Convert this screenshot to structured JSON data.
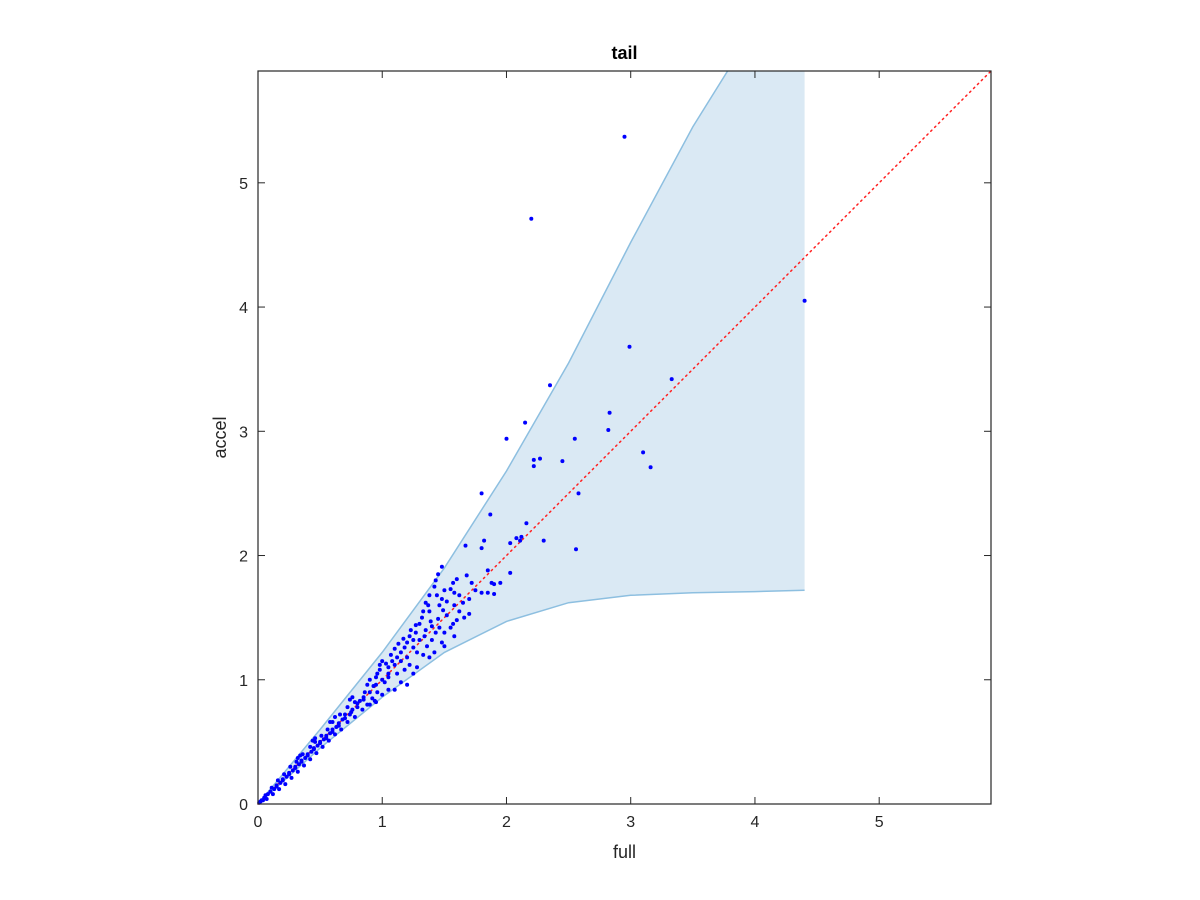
{
  "chart_data": {
    "type": "scatter",
    "title": "tail",
    "xlabel": "full",
    "ylabel": "accel",
    "xlim": [
      0,
      5.9
    ],
    "ylim": [
      0,
      5.9
    ],
    "xticks": [
      "0",
      "1",
      "2",
      "3",
      "4",
      "5"
    ],
    "yticks": [
      "0",
      "1",
      "2",
      "3",
      "4",
      "5"
    ],
    "grid": false,
    "legend": "none",
    "colors": {
      "points": "#0000ff",
      "band_fill": "#dae9f4",
      "band_edge": "#8dbfe0",
      "reference_line": "#ff2020",
      "axes": "#262626"
    },
    "band": {
      "upper": [
        [
          0,
          0
        ],
        [
          0.5,
          0.6
        ],
        [
          1.0,
          1.22
        ],
        [
          1.5,
          1.9
        ],
        [
          2.0,
          2.68
        ],
        [
          2.5,
          3.55
        ],
        [
          3.0,
          4.52
        ],
        [
          3.5,
          5.45
        ],
        [
          3.78,
          5.9
        ],
        [
          4.4,
          5.9
        ]
      ],
      "lower": [
        [
          0,
          0
        ],
        [
          0.5,
          0.45
        ],
        [
          1.0,
          0.86
        ],
        [
          1.5,
          1.22
        ],
        [
          2.0,
          1.47
        ],
        [
          2.5,
          1.62
        ],
        [
          3.0,
          1.68
        ],
        [
          3.5,
          1.7
        ],
        [
          4.0,
          1.71
        ],
        [
          4.4,
          1.72
        ]
      ]
    },
    "reference_line": {
      "style": "dotted",
      "from": [
        0,
        0
      ],
      "to": [
        5.9,
        5.9
      ]
    },
    "series": [
      {
        "points": [
          [
            2.95,
            5.37
          ],
          [
            2.2,
            4.71
          ],
          [
            4.4,
            4.05
          ],
          [
            2.99,
            3.68
          ],
          [
            3.33,
            3.42
          ],
          [
            2.35,
            3.37
          ],
          [
            2.83,
            3.15
          ],
          [
            2.82,
            3.01
          ],
          [
            2.15,
            3.07
          ],
          [
            2.0,
            2.94
          ],
          [
            2.55,
            2.94
          ],
          [
            3.1,
            2.83
          ],
          [
            3.16,
            2.71
          ],
          [
            2.22,
            2.77
          ],
          [
            2.27,
            2.78
          ],
          [
            2.45,
            2.76
          ],
          [
            2.22,
            2.72
          ],
          [
            2.58,
            2.5
          ],
          [
            1.8,
            2.5
          ],
          [
            1.87,
            2.33
          ],
          [
            2.16,
            2.26
          ],
          [
            2.3,
            2.12
          ],
          [
            2.56,
            2.05
          ],
          [
            2.08,
            2.14
          ],
          [
            2.12,
            2.15
          ],
          [
            2.03,
            2.1
          ],
          [
            2.11,
            2.12
          ],
          [
            2.03,
            1.86
          ],
          [
            1.67,
            2.08
          ],
          [
            1.82,
            2.12
          ],
          [
            1.48,
            1.91
          ],
          [
            1.8,
            2.06
          ],
          [
            1.85,
            1.88
          ],
          [
            1.9,
            1.77
          ],
          [
            1.95,
            1.78
          ],
          [
            1.88,
            1.78
          ],
          [
            1.8,
            1.7
          ],
          [
            1.85,
            1.7
          ],
          [
            1.9,
            1.69
          ],
          [
            1.68,
            1.84
          ],
          [
            1.72,
            1.78
          ],
          [
            1.6,
            1.81
          ],
          [
            1.45,
            1.85
          ],
          [
            1.43,
            1.8
          ],
          [
            1.55,
            1.73
          ],
          [
            1.58,
            1.7
          ],
          [
            1.52,
            1.63
          ],
          [
            1.46,
            1.6
          ],
          [
            1.65,
            1.62
          ],
          [
            1.62,
            1.55
          ],
          [
            1.48,
            1.65
          ],
          [
            1.42,
            1.75
          ],
          [
            1.38,
            1.68
          ],
          [
            1.35,
            1.62
          ],
          [
            1.38,
            1.55
          ],
          [
            1.45,
            1.49
          ],
          [
            1.5,
            1.38
          ],
          [
            1.55,
            1.42
          ],
          [
            1.58,
            1.35
          ],
          [
            1.32,
            1.5
          ],
          [
            1.3,
            1.45
          ],
          [
            1.27,
            1.38
          ],
          [
            1.25,
            1.32
          ],
          [
            1.22,
            1.35
          ],
          [
            1.2,
            1.3
          ],
          [
            1.28,
            1.22
          ],
          [
            1.33,
            1.2
          ],
          [
            1.36,
            1.27
          ],
          [
            1.4,
            1.32
          ],
          [
            1.43,
            1.38
          ],
          [
            1.46,
            1.42
          ],
          [
            1.18,
            1.26
          ],
          [
            1.15,
            1.22
          ],
          [
            1.12,
            1.18
          ],
          [
            1.1,
            1.25
          ],
          [
            1.08,
            1.15
          ],
          [
            1.05,
            1.1
          ],
          [
            1.12,
            1.05
          ],
          [
            1.18,
            1.08
          ],
          [
            1.22,
            1.12
          ],
          [
            1.25,
            1.05
          ],
          [
            1.28,
            1.1
          ],
          [
            1.15,
            0.98
          ],
          [
            1.2,
            0.96
          ],
          [
            1.1,
            0.92
          ],
          [
            1.05,
            1.02
          ],
          [
            1.02,
            0.98
          ],
          [
            0.98,
            1.08
          ],
          [
            0.95,
            1.02
          ],
          [
            0.93,
            0.95
          ],
          [
            0.96,
            0.9
          ],
          [
            1.0,
            0.88
          ],
          [
            1.05,
            0.92
          ],
          [
            0.9,
            1.0
          ],
          [
            0.88,
            0.96
          ],
          [
            0.86,
            0.9
          ],
          [
            0.92,
            0.85
          ],
          [
            0.95,
            0.82
          ],
          [
            0.85,
            0.86
          ],
          [
            0.82,
            0.83
          ],
          [
            0.8,
            0.78
          ],
          [
            0.84,
            0.76
          ],
          [
            0.88,
            0.8
          ],
          [
            0.78,
            0.82
          ],
          [
            0.76,
            0.76
          ],
          [
            0.74,
            0.72
          ],
          [
            0.78,
            0.7
          ],
          [
            0.72,
            0.78
          ],
          [
            0.7,
            0.72
          ],
          [
            0.68,
            0.68
          ],
          [
            0.72,
            0.66
          ],
          [
            0.66,
            0.72
          ],
          [
            0.65,
            0.65
          ],
          [
            0.63,
            0.62
          ],
          [
            0.67,
            0.6
          ],
          [
            0.6,
            0.66
          ],
          [
            0.6,
            0.6
          ],
          [
            0.58,
            0.57
          ],
          [
            0.62,
            0.56
          ],
          [
            0.56,
            0.6
          ],
          [
            0.55,
            0.55
          ],
          [
            0.53,
            0.52
          ],
          [
            0.57,
            0.51
          ],
          [
            0.51,
            0.55
          ],
          [
            0.5,
            0.5
          ],
          [
            0.48,
            0.47
          ],
          [
            0.52,
            0.46
          ],
          [
            0.46,
            0.5
          ],
          [
            0.45,
            0.45
          ],
          [
            0.43,
            0.42
          ],
          [
            0.47,
            0.41
          ],
          [
            0.42,
            0.46
          ],
          [
            0.4,
            0.4
          ],
          [
            0.38,
            0.37
          ],
          [
            0.42,
            0.36
          ],
          [
            0.36,
            0.4
          ],
          [
            0.35,
            0.35
          ],
          [
            0.33,
            0.32
          ],
          [
            0.37,
            0.31
          ],
          [
            0.31,
            0.34
          ],
          [
            0.3,
            0.3
          ],
          [
            0.28,
            0.27
          ],
          [
            0.32,
            0.26
          ],
          [
            0.26,
            0.3
          ],
          [
            0.25,
            0.25
          ],
          [
            0.23,
            0.22
          ],
          [
            0.27,
            0.21
          ],
          [
            0.21,
            0.24
          ],
          [
            0.2,
            0.2
          ],
          [
            0.18,
            0.17
          ],
          [
            0.22,
            0.16
          ],
          [
            0.16,
            0.19
          ],
          [
            0.15,
            0.15
          ],
          [
            0.13,
            0.12
          ],
          [
            0.17,
            0.12
          ],
          [
            0.11,
            0.13
          ],
          [
            0.1,
            0.1
          ],
          [
            0.08,
            0.08
          ],
          [
            0.12,
            0.08
          ],
          [
            0.06,
            0.07
          ],
          [
            0.05,
            0.05
          ],
          [
            0.03,
            0.03
          ],
          [
            0.07,
            0.04
          ],
          [
            0.02,
            0.02
          ],
          [
            0.01,
            0.01
          ],
          [
            0.04,
            0.03
          ],
          [
            1.7,
            1.65
          ],
          [
            1.75,
            1.72
          ],
          [
            1.62,
            1.68
          ],
          [
            1.52,
            1.52
          ],
          [
            1.4,
            1.43
          ],
          [
            1.35,
            1.4
          ],
          [
            1.3,
            1.32
          ],
          [
            1.25,
            1.26
          ],
          [
            1.2,
            1.18
          ],
          [
            1.15,
            1.15
          ],
          [
            1.1,
            1.12
          ],
          [
            1.05,
            1.05
          ],
          [
            1.0,
            1.0
          ],
          [
            0.95,
            0.96
          ],
          [
            0.9,
            0.9
          ],
          [
            0.85,
            0.84
          ],
          [
            0.8,
            0.81
          ],
          [
            0.75,
            0.74
          ],
          [
            0.7,
            0.69
          ],
          [
            0.65,
            0.63
          ],
          [
            0.6,
            0.58
          ],
          [
            0.55,
            0.53
          ],
          [
            0.5,
            0.49
          ],
          [
            0.45,
            0.44
          ],
          [
            0.4,
            0.39
          ],
          [
            0.35,
            0.34
          ],
          [
            0.3,
            0.29
          ],
          [
            0.25,
            0.24
          ],
          [
            0.2,
            0.19
          ],
          [
            0.15,
            0.14
          ],
          [
            1.42,
            1.22
          ],
          [
            1.38,
            1.18
          ],
          [
            1.0,
            1.15
          ],
          [
            0.98,
            1.12
          ],
          [
            0.76,
            0.86
          ],
          [
            0.74,
            0.84
          ],
          [
            0.62,
            0.7
          ],
          [
            0.58,
            0.66
          ],
          [
            0.46,
            0.53
          ],
          [
            0.44,
            0.51
          ],
          [
            0.34,
            0.39
          ],
          [
            0.32,
            0.37
          ],
          [
            1.6,
            1.48
          ],
          [
            1.57,
            1.45
          ],
          [
            1.66,
            1.5
          ],
          [
            1.7,
            1.53
          ],
          [
            1.48,
            1.3
          ],
          [
            1.5,
            1.27
          ],
          [
            1.58,
            1.6
          ],
          [
            1.49,
            1.56
          ],
          [
            1.39,
            1.47
          ],
          [
            1.34,
            1.35
          ],
          [
            0.9,
            0.8
          ],
          [
            0.94,
            0.83
          ],
          [
            0.96,
            1.05
          ],
          [
            1.03,
            1.13
          ],
          [
            1.07,
            1.2
          ],
          [
            1.13,
            1.29
          ],
          [
            1.17,
            1.33
          ],
          [
            1.23,
            1.4
          ],
          [
            1.27,
            1.44
          ],
          [
            1.33,
            1.55
          ],
          [
            1.37,
            1.6
          ],
          [
            1.44,
            1.68
          ],
          [
            1.5,
            1.72
          ],
          [
            1.57,
            1.78
          ]
        ]
      }
    ]
  }
}
